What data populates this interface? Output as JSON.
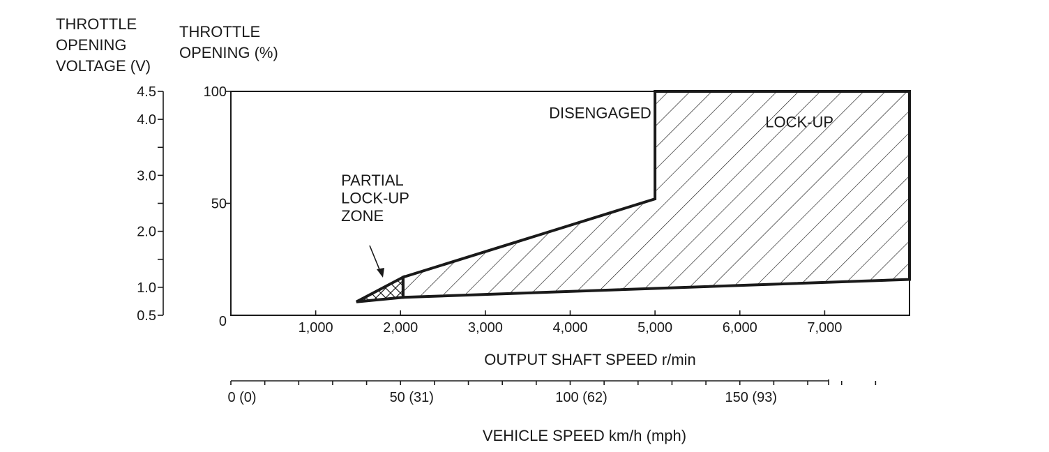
{
  "chart_data": {
    "type": "area",
    "title": "",
    "xlabel": "OUTPUT SHAFT SPEED r/min",
    "ylabel": "THROTTLE OPENING (%)",
    "ylabel_secondary": "THROTTLE OPENING VOLTAGE (V)",
    "x2label": "VEHICLE SPEED km/h (mph)",
    "xlim": [
      0,
      8000
    ],
    "ylim": [
      0,
      100
    ],
    "x_ticks": [
      1000,
      2000,
      3000,
      4000,
      5000,
      6000,
      7000
    ],
    "x_tick_labels": [
      "1,000",
      "2,000",
      "3,000",
      "4,000",
      "5,000",
      "6,000",
      "7,000"
    ],
    "y_ticks": [
      0,
      50,
      100
    ],
    "y_tick_labels": [
      "0",
      "50",
      "100"
    ],
    "voltage_ticks": [
      {
        "pct": 0,
        "label": "0.5"
      },
      {
        "pct": 12.5,
        "label": "1.0"
      },
      {
        "pct": 25,
        "label": ""
      },
      {
        "pct": 37.5,
        "label": "2.0"
      },
      {
        "pct": 50,
        "label": ""
      },
      {
        "pct": 62.5,
        "label": "3.0"
      },
      {
        "pct": 75,
        "label": ""
      },
      {
        "pct": 87.5,
        "label": "4.0"
      },
      {
        "pct": 100,
        "label": "4.5"
      }
    ],
    "vehicle_speed_axis": {
      "x_rpm_per_kmh": 40,
      "ticks_kmh": [
        0,
        10,
        20,
        30,
        40,
        50,
        60,
        70,
        80,
        90,
        100,
        110,
        120,
        130,
        140,
        150,
        160,
        170,
        180,
        190
      ],
      "labels": [
        {
          "kmh": 0,
          "label": "0 (0)"
        },
        {
          "kmh": 50,
          "label": "50 (31)"
        },
        {
          "kmh": 100,
          "label": "100 (62)"
        },
        {
          "kmh": 150,
          "label": "150 (93)"
        }
      ]
    },
    "regions": [
      {
        "name": "PARTIAL LOCK-UP ZONE",
        "pattern": "crosshatch",
        "points": [
          [
            1480,
            6
          ],
          [
            2030,
            17
          ],
          [
            2030,
            8
          ],
          [
            1480,
            6
          ]
        ]
      },
      {
        "name": "LOCK-UP",
        "pattern": "hatch",
        "points": [
          [
            2030,
            17
          ],
          [
            5000,
            52
          ],
          [
            5000,
            100
          ],
          [
            8000,
            100
          ],
          [
            8000,
            16
          ],
          [
            2030,
            8
          ]
        ]
      }
    ],
    "annotations": [
      {
        "text": "DISENGAGED",
        "x": 3750,
        "y": 88
      },
      {
        "text": "LOCK-UP",
        "x": 6300,
        "y": 84
      },
      {
        "text": "PARTIAL",
        "x": 1300,
        "y": 58
      },
      {
        "text": "LOCK-UP",
        "x": 1300,
        "y": 50
      },
      {
        "text": "ZONE",
        "x": 1300,
        "y": 42
      }
    ],
    "axis_headings": {
      "voltage": [
        "THROTTLE",
        "OPENING",
        "VOLTAGE (V)"
      ],
      "percent": [
        "THROTTLE",
        "OPENING (%)"
      ]
    }
  }
}
